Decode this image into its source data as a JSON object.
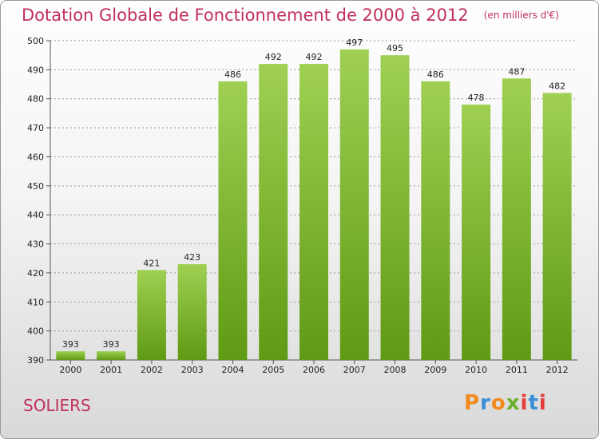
{
  "header": {
    "title": "Dotation Globale de Fonctionnement de 2000 à 2012",
    "unit": "(en milliers d'€)"
  },
  "footer": {
    "city": "SOLIERS",
    "brand": "Proxiti",
    "brand_colors": [
      "#f08a1c",
      "#3a8fd8",
      "#f08a1c",
      "#6ab12c",
      "#e43b3b",
      "#3a8fd8",
      "#e43b3b"
    ]
  },
  "colors": {
    "title": "#c0305a",
    "bar_light": "#9fd052",
    "bar_dark": "#5f9a14",
    "grid": "#999999"
  },
  "chart_data": {
    "type": "bar",
    "title": "Dotation Globale de Fonctionnement de 2000 à 2012",
    "subtitle": "(en milliers d'€)",
    "xlabel": "",
    "ylabel": "",
    "categories": [
      "2000",
      "2001",
      "2002",
      "2003",
      "2004",
      "2005",
      "2006",
      "2007",
      "2008",
      "2009",
      "2010",
      "2011",
      "2012"
    ],
    "values": [
      393,
      393,
      421,
      423,
      486,
      492,
      492,
      497,
      495,
      486,
      478,
      487,
      482
    ],
    "ylim": [
      390,
      500
    ],
    "yticks": [
      390,
      400,
      410,
      420,
      430,
      440,
      450,
      460,
      470,
      480,
      490,
      500
    ],
    "grid": true,
    "legend": "none"
  }
}
